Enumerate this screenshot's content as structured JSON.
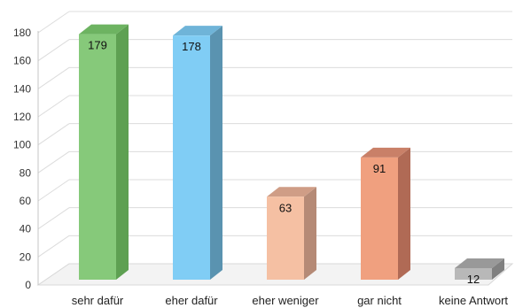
{
  "chart_data": {
    "type": "bar",
    "style": "3d",
    "categories": [
      "sehr dafür",
      "eher dafür",
      "eher weniger",
      "gar nicht",
      "keine Antwort"
    ],
    "values": [
      179,
      178,
      63,
      91,
      12
    ],
    "data_labels": [
      "179",
      "178",
      "63",
      "91",
      "12"
    ],
    "title": "",
    "xlabel": "",
    "ylabel": "",
    "ylim": [
      0,
      180
    ],
    "yticks": [
      0,
      20,
      40,
      60,
      80,
      100,
      120,
      140,
      160,
      180
    ],
    "grid": true,
    "legend": "none",
    "colors": [
      {
        "front": "#86c97a",
        "side": "#5ea052",
        "top": "#6db361"
      },
      {
        "front": "#80cdf5",
        "side": "#5a93b0",
        "top": "#6fb4d8"
      },
      {
        "front": "#f5c0a3",
        "side": "#b58a76",
        "top": "#cf9d86"
      },
      {
        "front": "#f0a07f",
        "side": "#b06a55",
        "top": "#c98068"
      },
      {
        "front": "#b8b8b8",
        "side": "#808080",
        "top": "#999999"
      }
    ]
  }
}
